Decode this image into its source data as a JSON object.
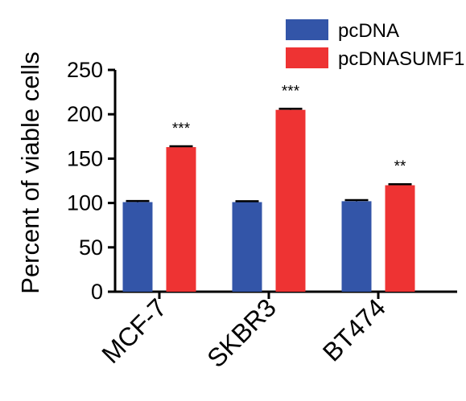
{
  "chart_data": {
    "type": "bar",
    "title": "",
    "xlabel": "",
    "ylabel": "Percent of viable cells",
    "categories": [
      "MCF-7",
      "SKBR3",
      "BT474"
    ],
    "ylim": [
      0,
      250
    ],
    "yticks": [
      0,
      50,
      100,
      150,
      200,
      250
    ],
    "grid": false,
    "legend_position": "top-right",
    "series": [
      {
        "name": "pcDNA",
        "color": "#3355a8",
        "values": [
          101,
          101,
          102
        ],
        "errors": [
          1.2,
          1.0,
          1.3
        ]
      },
      {
        "name": "pcDNASUMF1",
        "color": "#ee3333",
        "values": [
          163,
          205,
          120
        ],
        "errors": [
          1.0,
          1.2,
          1.2
        ]
      }
    ],
    "annotations": [
      "***",
      "***",
      "**"
    ]
  }
}
